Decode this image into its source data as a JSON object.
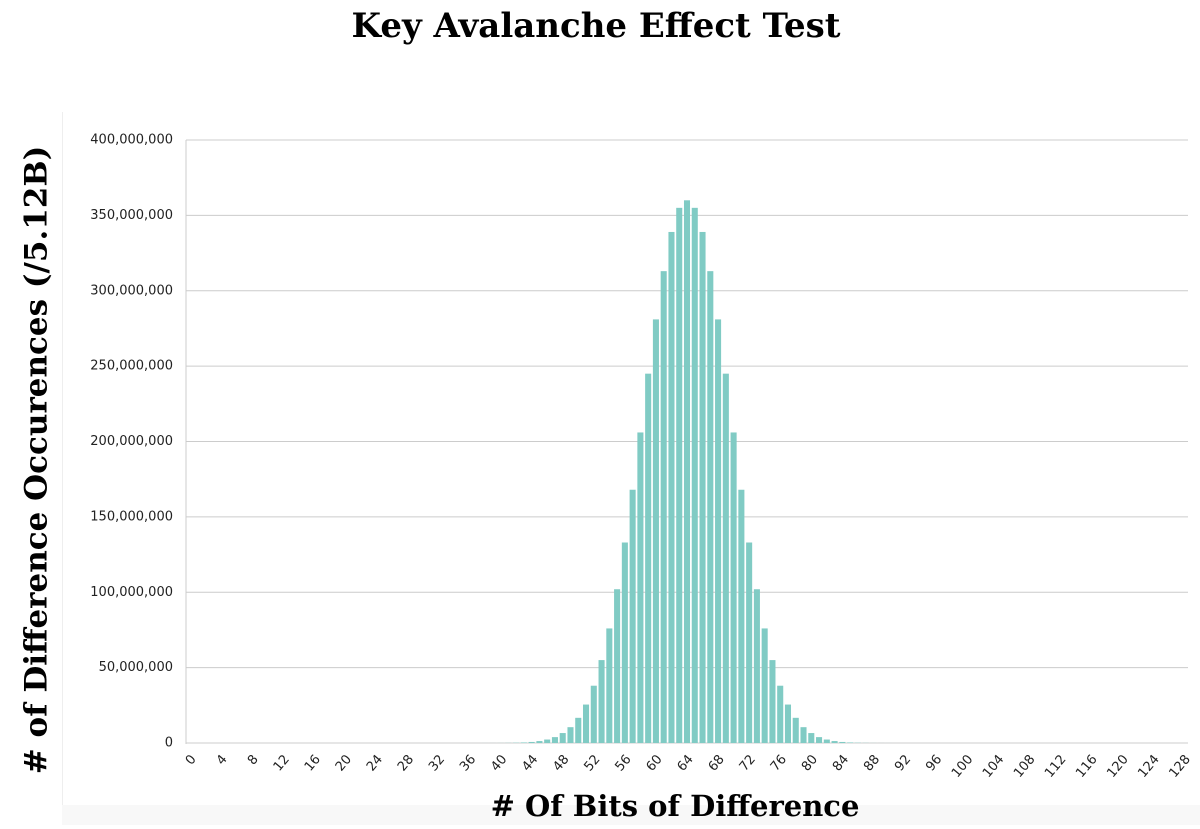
{
  "chart_data": {
    "type": "bar",
    "title": "Key Avalanche Effect Test",
    "x_label": "# Of Bits of Difference",
    "y_label": "# of Difference Occurences (/5.12B)",
    "color": "#80cbc4",
    "grid": true,
    "categories": [
      0,
      null,
      null,
      null,
      4,
      null,
      null,
      null,
      8,
      null,
      null,
      null,
      12,
      null,
      null,
      null,
      16,
      null,
      null,
      null,
      20,
      null,
      null,
      null,
      24,
      null,
      null,
      null,
      28,
      null,
      null,
      null,
      32,
      null,
      null,
      null,
      36,
      null,
      null,
      null,
      40,
      null,
      null,
      null,
      44,
      null,
      null,
      null,
      48,
      null,
      null,
      null,
      52,
      null,
      null,
      null,
      56,
      null,
      null,
      null,
      60,
      null,
      null,
      null,
      64,
      null,
      null,
      null,
      68,
      null,
      null,
      null,
      72,
      null,
      null,
      null,
      76,
      null,
      null,
      null,
      80,
      null,
      null,
      null,
      84,
      null,
      null,
      null,
      88,
      null,
      null,
      null,
      92,
      null,
      null,
      null,
      96,
      null,
      null,
      null,
      100,
      null,
      null,
      null,
      104,
      null,
      null,
      null,
      108,
      null,
      null,
      null,
      112,
      null,
      null,
      null,
      116,
      null,
      null,
      null,
      120,
      null,
      null,
      null,
      124,
      null,
      null,
      null,
      128
    ],
    "values": [
      0,
      0,
      0,
      0,
      0,
      0,
      0,
      0,
      0,
      0,
      0,
      0,
      0,
      0,
      0,
      0,
      0,
      0,
      0,
      0,
      0,
      0,
      0,
      0,
      0,
      0,
      0,
      0,
      0,
      0,
      0,
      0,
      0,
      0,
      0,
      0,
      0,
      0,
      10000,
      20000,
      40000,
      90000,
      180000,
      360000,
      690000,
      1280000,
      2300000,
      3900000,
      6600000,
      10500000,
      16700000,
      25500000,
      38000000,
      55000000,
      76000000,
      102000000,
      133000000,
      168000000,
      206000000,
      245000000,
      281000000,
      313000000,
      339000000,
      355000000,
      360000000,
      355000000,
      339000000,
      313000000,
      281000000,
      245000000,
      206000000,
      168000000,
      133000000,
      102000000,
      76000000,
      55000000,
      38000000,
      25500000,
      16700000,
      10500000,
      6600000,
      3900000,
      2300000,
      1280000,
      690000,
      360000,
      180000,
      90000,
      40000,
      20000,
      10000,
      0,
      0,
      0,
      0,
      0,
      0,
      0,
      0,
      0,
      0,
      0,
      0,
      0,
      0,
      0,
      0,
      0,
      0,
      0,
      0,
      0,
      0,
      0,
      0,
      0,
      0,
      0,
      0,
      0,
      0,
      0,
      0,
      0,
      0,
      0,
      0,
      0,
      0
    ],
    "ylim": [
      0,
      400000000
    ],
    "yticks": [
      0,
      {
        "value": 50000000,
        "label": "50,000,000"
      },
      {
        "value": 100000000,
        "label": "100,000,000"
      },
      {
        "value": 150000000,
        "label": "150,000,000"
      },
      {
        "value": 200000000,
        "label": "200,000,000"
      },
      {
        "value": 250000000,
        "label": "250,000,000"
      },
      {
        "value": 300000000,
        "label": "300,000,000"
      },
      {
        "value": 350000000,
        "label": "350,000,000"
      },
      {
        "value": 400000000,
        "label": "400,000,000"
      }
    ]
  }
}
